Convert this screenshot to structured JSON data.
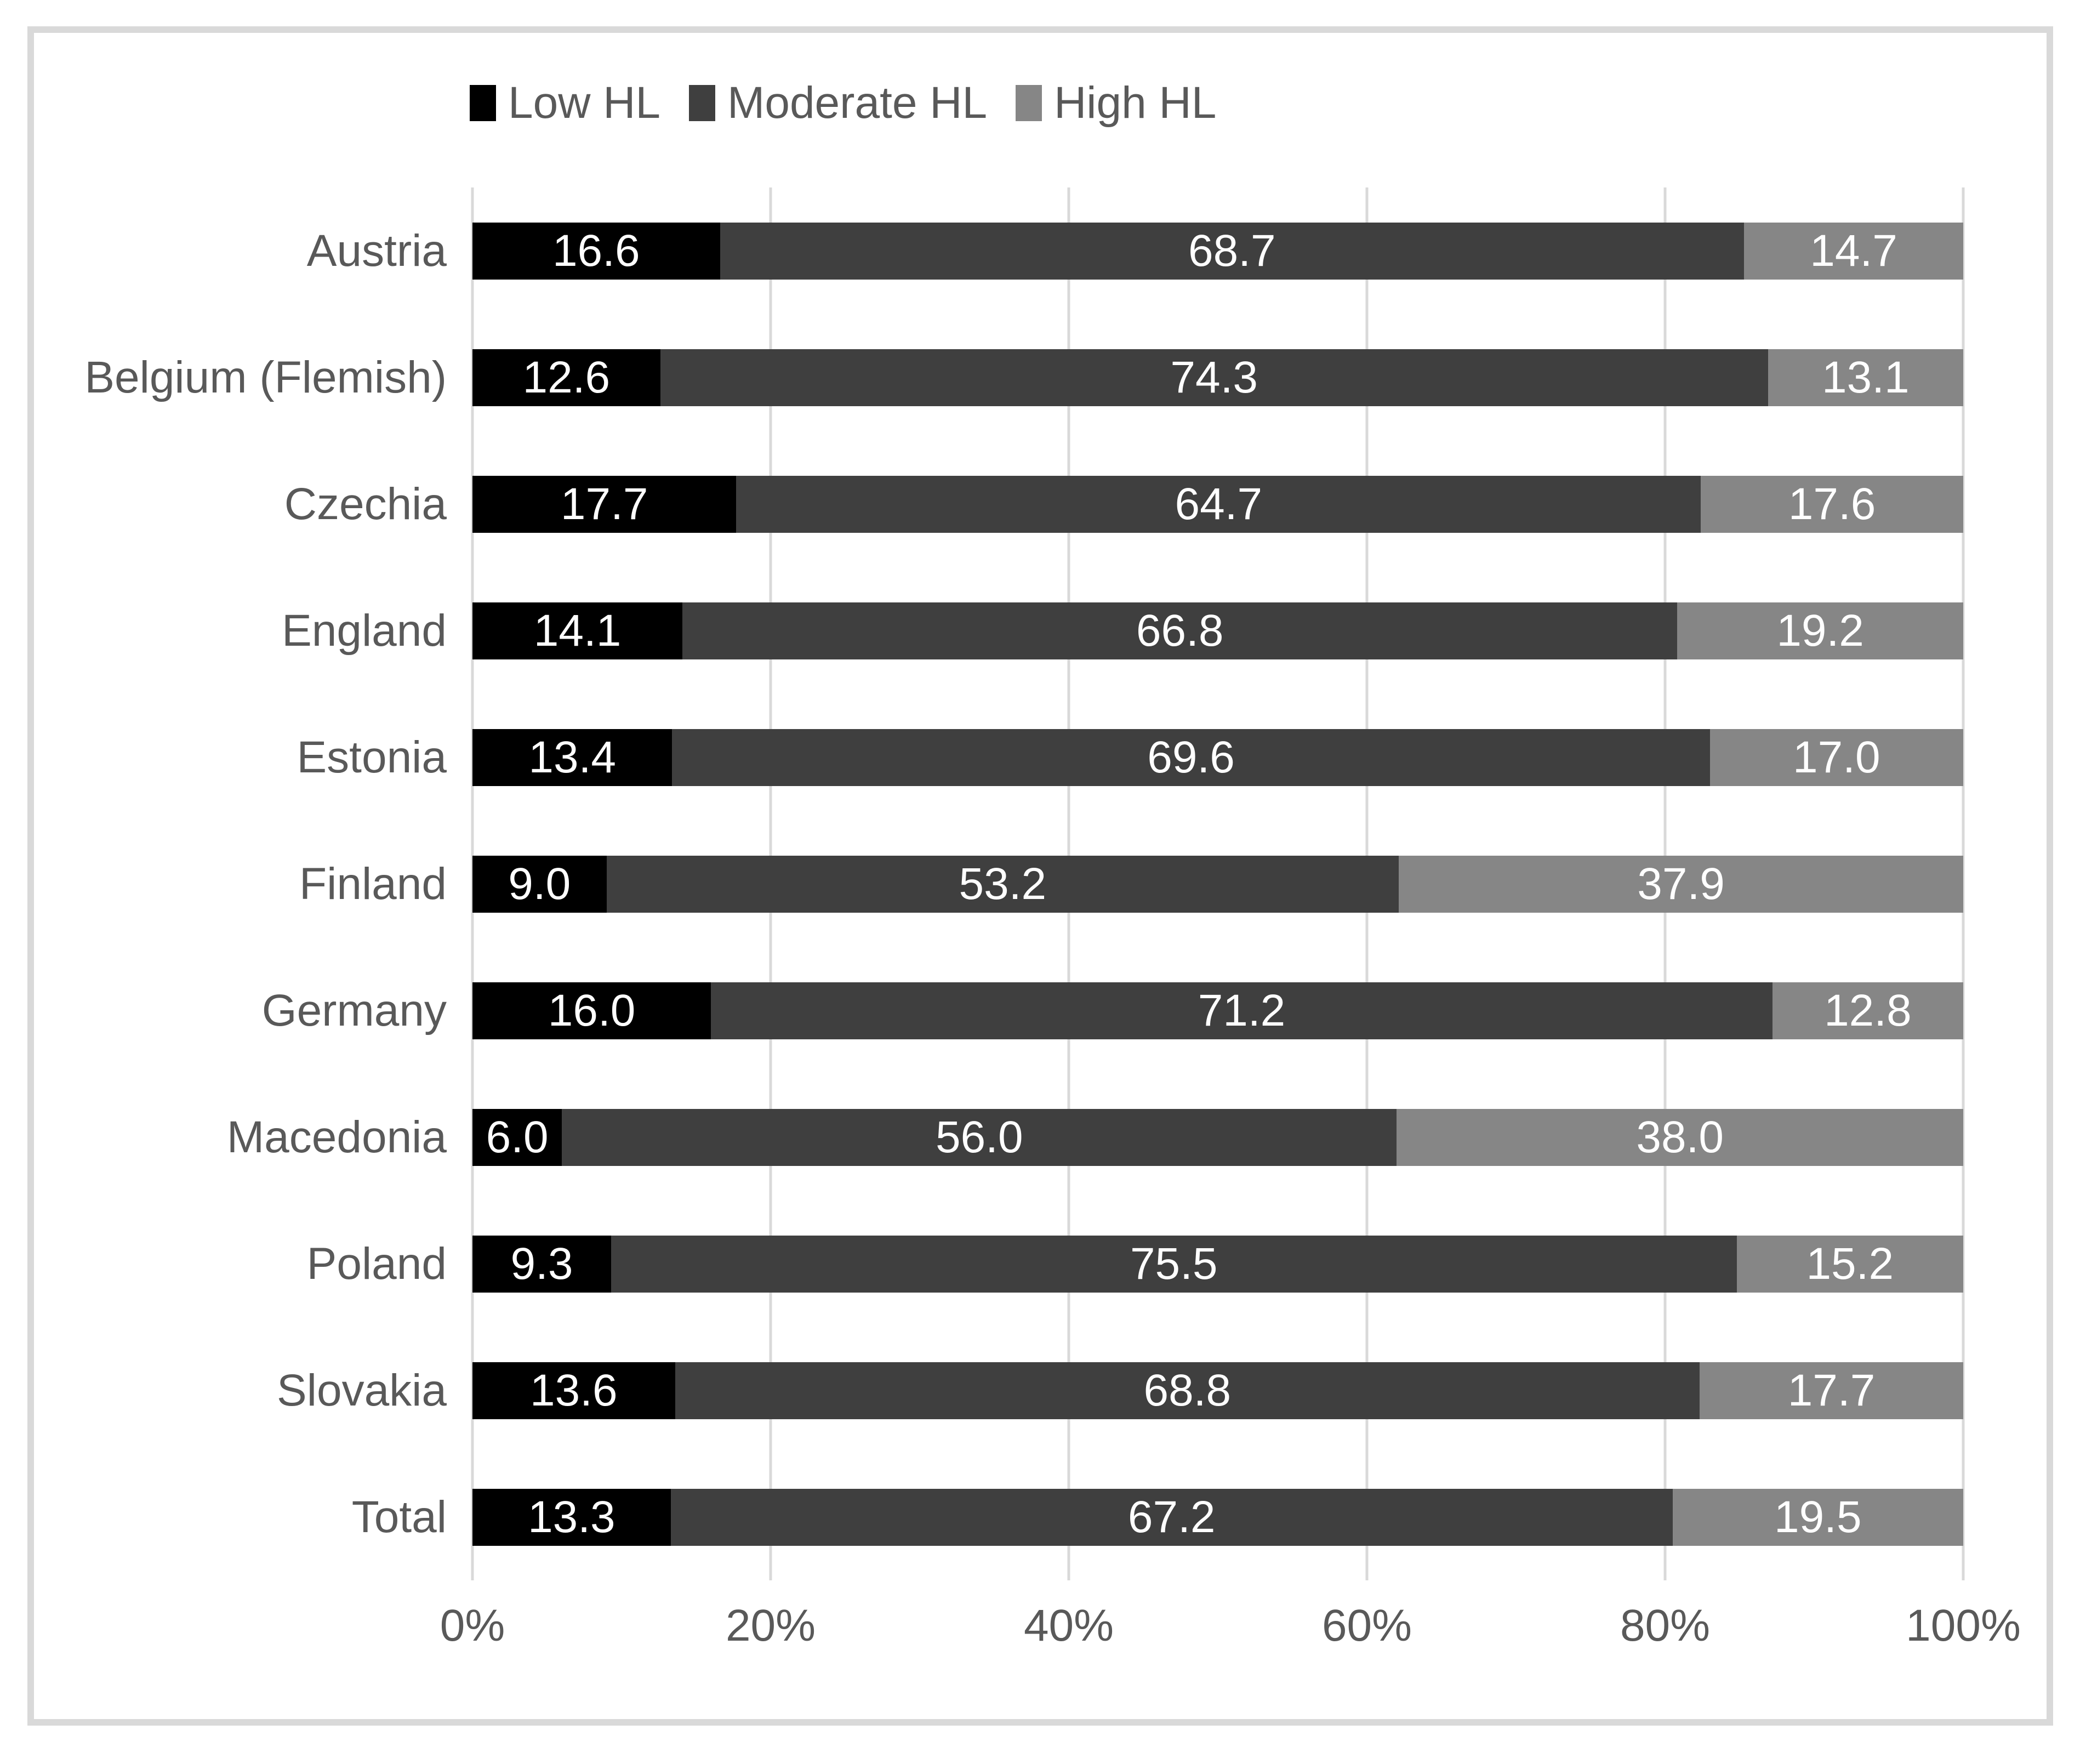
{
  "chart_data": {
    "type": "bar",
    "variant": "100%-stacked-horizontal",
    "title": "",
    "categories": [
      "Austria",
      "Belgium (Flemish)",
      "Czechia",
      "England",
      "Estonia",
      "Finland",
      "Germany",
      "Macedonia",
      "Poland",
      "Slovakia",
      "Total"
    ],
    "series": [
      {
        "name": "Low HL",
        "color": "#000000",
        "values": [
          16.6,
          12.6,
          17.7,
          14.1,
          13.4,
          9.0,
          16.0,
          6.0,
          9.3,
          13.6,
          13.3
        ]
      },
      {
        "name": "Moderate HL",
        "color": "#3f3f3f",
        "values": [
          68.7,
          74.3,
          64.7,
          66.8,
          69.6,
          53.2,
          71.2,
          56.0,
          75.5,
          68.8,
          67.2
        ]
      },
      {
        "name": "High HL",
        "color": "#868686",
        "values": [
          14.7,
          13.1,
          17.6,
          19.2,
          17.0,
          37.9,
          12.8,
          38.0,
          15.2,
          17.7,
          19.5
        ]
      }
    ],
    "x_ticks": [
      "0%",
      "20%",
      "40%",
      "60%",
      "80%",
      "100%"
    ],
    "xlim": [
      0,
      100
    ],
    "xlabel": "",
    "ylabel": "",
    "legend_position": "top",
    "grid": "vertical-only",
    "value_labels": "inside-center, one decimal, white",
    "colors": {
      "frame_border": "#d9d9d9",
      "gridline": "#d9d9d9",
      "axis_text": "#595959",
      "legend_text": "#595959",
      "bar_value_text": "#ffffff",
      "background": "#ffffff"
    }
  }
}
